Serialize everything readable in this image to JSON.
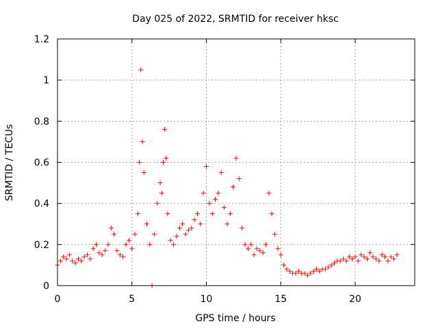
{
  "chart_data": {
    "type": "scatter",
    "title": "Day 025 of 2022, SRMTID for receiver hksc",
    "xlabel": "GPS time / hours",
    "ylabel": "SRMTID / TECUs",
    "xlim": [
      0,
      24
    ],
    "ylim": [
      0,
      1.2
    ],
    "xticks": [
      0,
      5,
      10,
      15,
      20
    ],
    "yticks": [
      0,
      0.2,
      0.4,
      0.6,
      0.8,
      1,
      1.2
    ],
    "xtick_labels": [
      "0",
      "5",
      "10",
      "15",
      "20"
    ],
    "ytick_labels": [
      "0",
      "0.2",
      "0.4",
      "0.6",
      "0.8",
      "1",
      "1.2"
    ],
    "grid": true,
    "marker": "+",
    "series": [
      {
        "name": "SRMTID",
        "color": "#ff0000",
        "x": [
          0.0,
          0.2,
          0.4,
          0.6,
          0.8,
          1.0,
          1.2,
          1.4,
          1.6,
          1.8,
          2.0,
          2.2,
          2.4,
          2.6,
          2.8,
          3.0,
          3.2,
          3.4,
          3.6,
          3.8,
          4.0,
          4.2,
          4.4,
          4.6,
          4.8,
          5.0,
          5.2,
          5.4,
          5.5,
          5.6,
          5.7,
          5.8,
          6.0,
          6.2,
          6.35,
          6.5,
          6.7,
          6.9,
          7.0,
          7.1,
          7.2,
          7.3,
          7.4,
          7.6,
          7.8,
          8.0,
          8.2,
          8.4,
          8.6,
          8.8,
          9.0,
          9.2,
          9.4,
          9.6,
          9.8,
          10.0,
          10.2,
          10.4,
          10.6,
          10.8,
          11.0,
          11.2,
          11.4,
          11.6,
          11.8,
          12.0,
          12.2,
          12.4,
          12.6,
          12.8,
          13.0,
          13.2,
          13.4,
          13.6,
          13.8,
          14.0,
          14.2,
          14.4,
          14.6,
          14.8,
          15.0,
          15.2,
          15.4,
          15.6,
          15.8,
          16.0,
          16.2,
          16.4,
          16.6,
          16.8,
          17.0,
          17.2,
          17.4,
          17.6,
          17.8,
          18.0,
          18.2,
          18.4,
          18.6,
          18.8,
          19.0,
          19.2,
          19.4,
          19.6,
          19.8,
          20.0,
          20.2,
          20.4,
          20.6,
          20.8,
          21.0,
          21.2,
          21.4,
          21.6,
          21.8,
          22.0,
          22.2,
          22.4,
          22.6,
          22.8
        ],
        "y": [
          0.1,
          0.12,
          0.14,
          0.13,
          0.15,
          0.12,
          0.11,
          0.13,
          0.12,
          0.14,
          0.15,
          0.13,
          0.18,
          0.2,
          0.16,
          0.15,
          0.17,
          0.2,
          0.28,
          0.25,
          0.17,
          0.15,
          0.14,
          0.2,
          0.22,
          0.18,
          0.25,
          0.35,
          0.6,
          1.05,
          0.7,
          0.55,
          0.3,
          0.2,
          0.0,
          0.25,
          0.4,
          0.5,
          0.45,
          0.6,
          0.76,
          0.62,
          0.35,
          0.22,
          0.2,
          0.24,
          0.28,
          0.3,
          0.25,
          0.27,
          0.28,
          0.32,
          0.35,
          0.3,
          0.45,
          0.58,
          0.4,
          0.35,
          0.42,
          0.45,
          0.55,
          0.38,
          0.3,
          0.35,
          0.48,
          0.62,
          0.52,
          0.28,
          0.2,
          0.18,
          0.2,
          0.15,
          0.18,
          0.17,
          0.16,
          0.2,
          0.45,
          0.35,
          0.25,
          0.18,
          0.15,
          0.1,
          0.08,
          0.07,
          0.06,
          0.06,
          0.07,
          0.06,
          0.06,
          0.05,
          0.06,
          0.07,
          0.08,
          0.07,
          0.08,
          0.08,
          0.09,
          0.1,
          0.11,
          0.12,
          0.12,
          0.13,
          0.12,
          0.14,
          0.13,
          0.14,
          0.12,
          0.15,
          0.14,
          0.13,
          0.16,
          0.14,
          0.13,
          0.12,
          0.15,
          0.14,
          0.12,
          0.14,
          0.13,
          0.15
        ]
      }
    ]
  }
}
